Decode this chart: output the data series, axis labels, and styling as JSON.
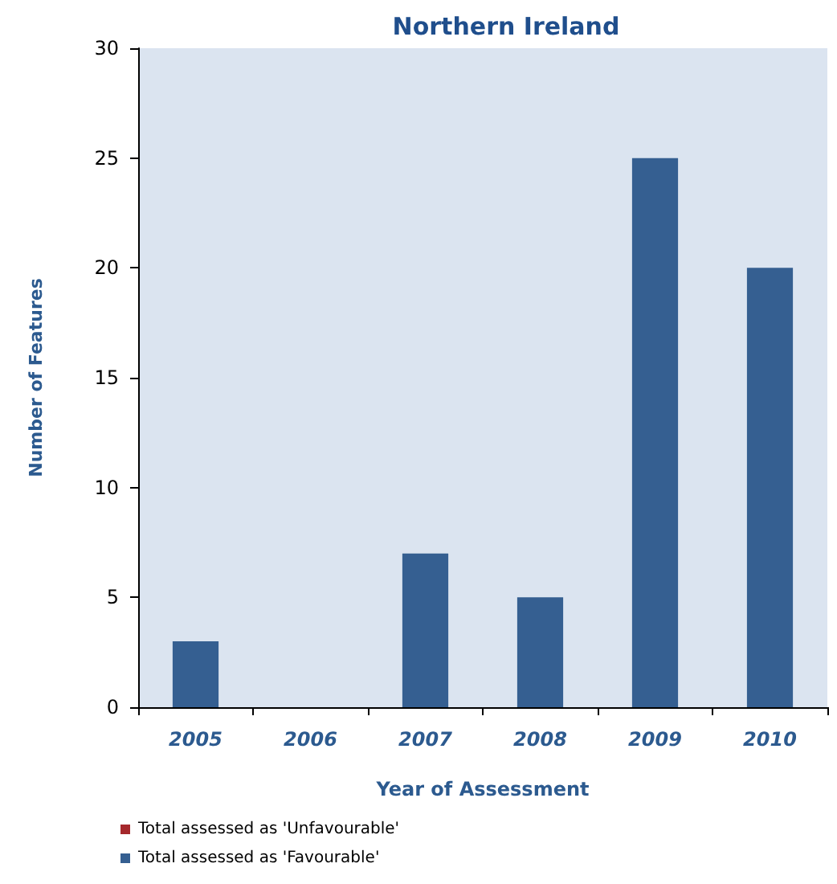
{
  "chart_data": {
    "type": "bar",
    "title": "Northern Ireland",
    "xlabel": "Year of Assessment",
    "ylabel": "Number of Features",
    "categories": [
      "2005",
      "2006",
      "2007",
      "2008",
      "2009",
      "2010"
    ],
    "stacked": true,
    "series": [
      {
        "name": "Total assessed as 'Favourable'",
        "color": "#355f91",
        "values": [
          3,
          0,
          7,
          5,
          25,
          20
        ]
      },
      {
        "name": "Total assessed as 'Unfavourable'",
        "color": "#a5282c",
        "values": [
          0,
          0,
          0,
          0,
          0,
          0
        ]
      }
    ],
    "ylim": [
      0,
      30
    ],
    "yticks": [
      0,
      5,
      10,
      15,
      20,
      25,
      30
    ],
    "grid": false,
    "legend": "bottom left"
  }
}
